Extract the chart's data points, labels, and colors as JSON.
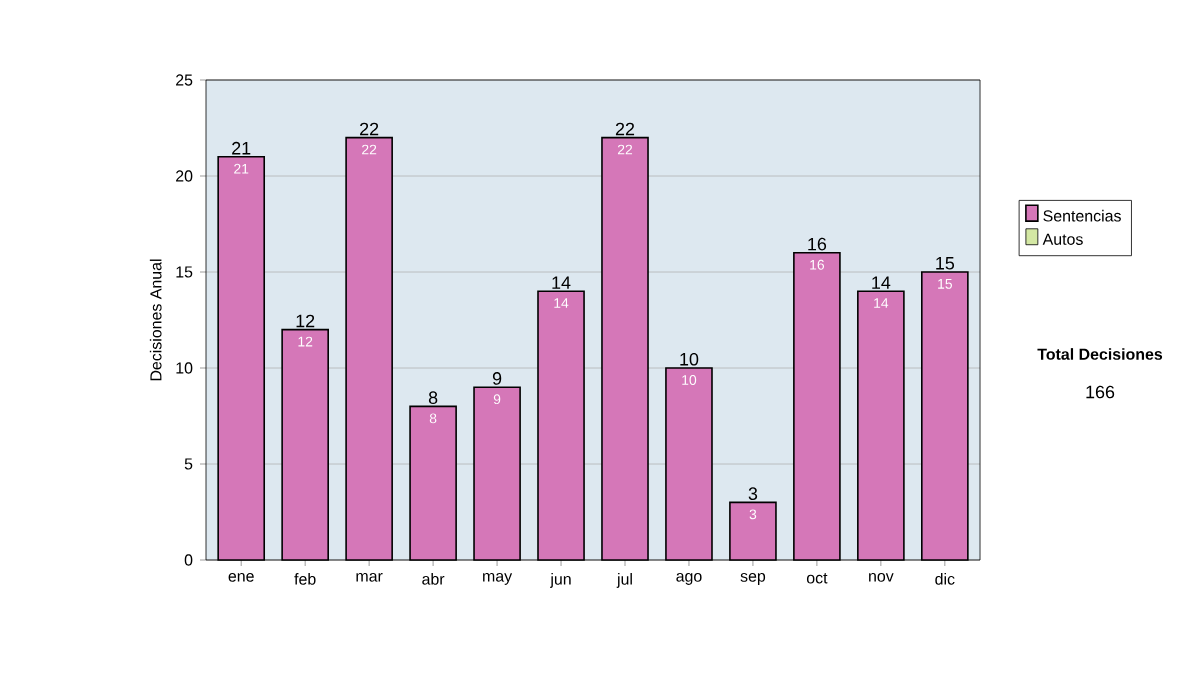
{
  "chart_data": {
    "type": "bar",
    "stacked": true,
    "ylabel": "Decisiones Anual",
    "categories": [
      "ene",
      "feb",
      "mar",
      "abr",
      "may",
      "jun",
      "jul",
      "ago",
      "sep",
      "oct",
      "nov",
      "dic"
    ],
    "series": [
      {
        "name": "Sentencias",
        "color": "#d577b8",
        "values": [
          21,
          12,
          22,
          8,
          9,
          14,
          22,
          10,
          3,
          16,
          14,
          15
        ]
      },
      {
        "name": "Autos",
        "color": "#d4e8a4",
        "values": [
          null,
          null,
          null,
          null,
          null,
          null,
          null,
          null,
          null,
          null,
          null,
          null
        ]
      }
    ],
    "data_labels": true,
    "totals": [
      "21",
      "12",
      "22",
      "8",
      "9",
      "14",
      "22",
      "10",
      "3",
      "16",
      "14",
      "15"
    ],
    "ylim": [
      0,
      25
    ],
    "yticks": [
      0,
      5,
      10,
      15,
      20,
      25
    ],
    "grid": "y",
    "legend": "right",
    "annotations": [
      "Total Decisiones",
      "166"
    ]
  }
}
